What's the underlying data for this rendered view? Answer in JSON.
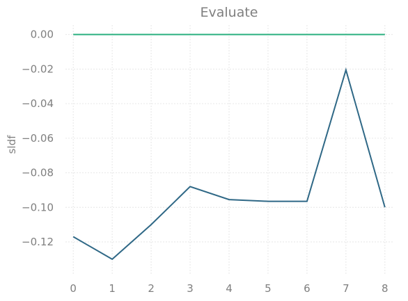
{
  "chart_data": {
    "type": "line",
    "title": "Evaluate",
    "xlabel": "",
    "ylabel": "sldf",
    "x": [
      0,
      1,
      2,
      3,
      4,
      5,
      6,
      7,
      8
    ],
    "xlim": [
      -0.2,
      8.2
    ],
    "ylim": [
      -0.1385,
      0.0055
    ],
    "xticks": [
      "0",
      "1",
      "2",
      "3",
      "4",
      "5",
      "6",
      "7",
      "8"
    ],
    "yticks": [
      0.0,
      -0.02,
      -0.04,
      -0.06,
      -0.08,
      -0.1,
      -0.12
    ],
    "ytick_labels": [
      "0.00",
      "−0.02",
      "−0.04",
      "−0.06",
      "−0.08",
      "−0.10",
      "−0.12"
    ],
    "grid": true,
    "legend": "none",
    "series": [
      {
        "color": "#2ab07f",
        "values": [
          0,
          0,
          0,
          0,
          0,
          0,
          0,
          0,
          0
        ]
      },
      {
        "color": "#2f6886",
        "values": [
          -0.117,
          -0.13,
          -0.11,
          -0.088,
          -0.0955,
          -0.0965,
          -0.0965,
          -0.0205,
          -0.1
        ]
      }
    ]
  }
}
